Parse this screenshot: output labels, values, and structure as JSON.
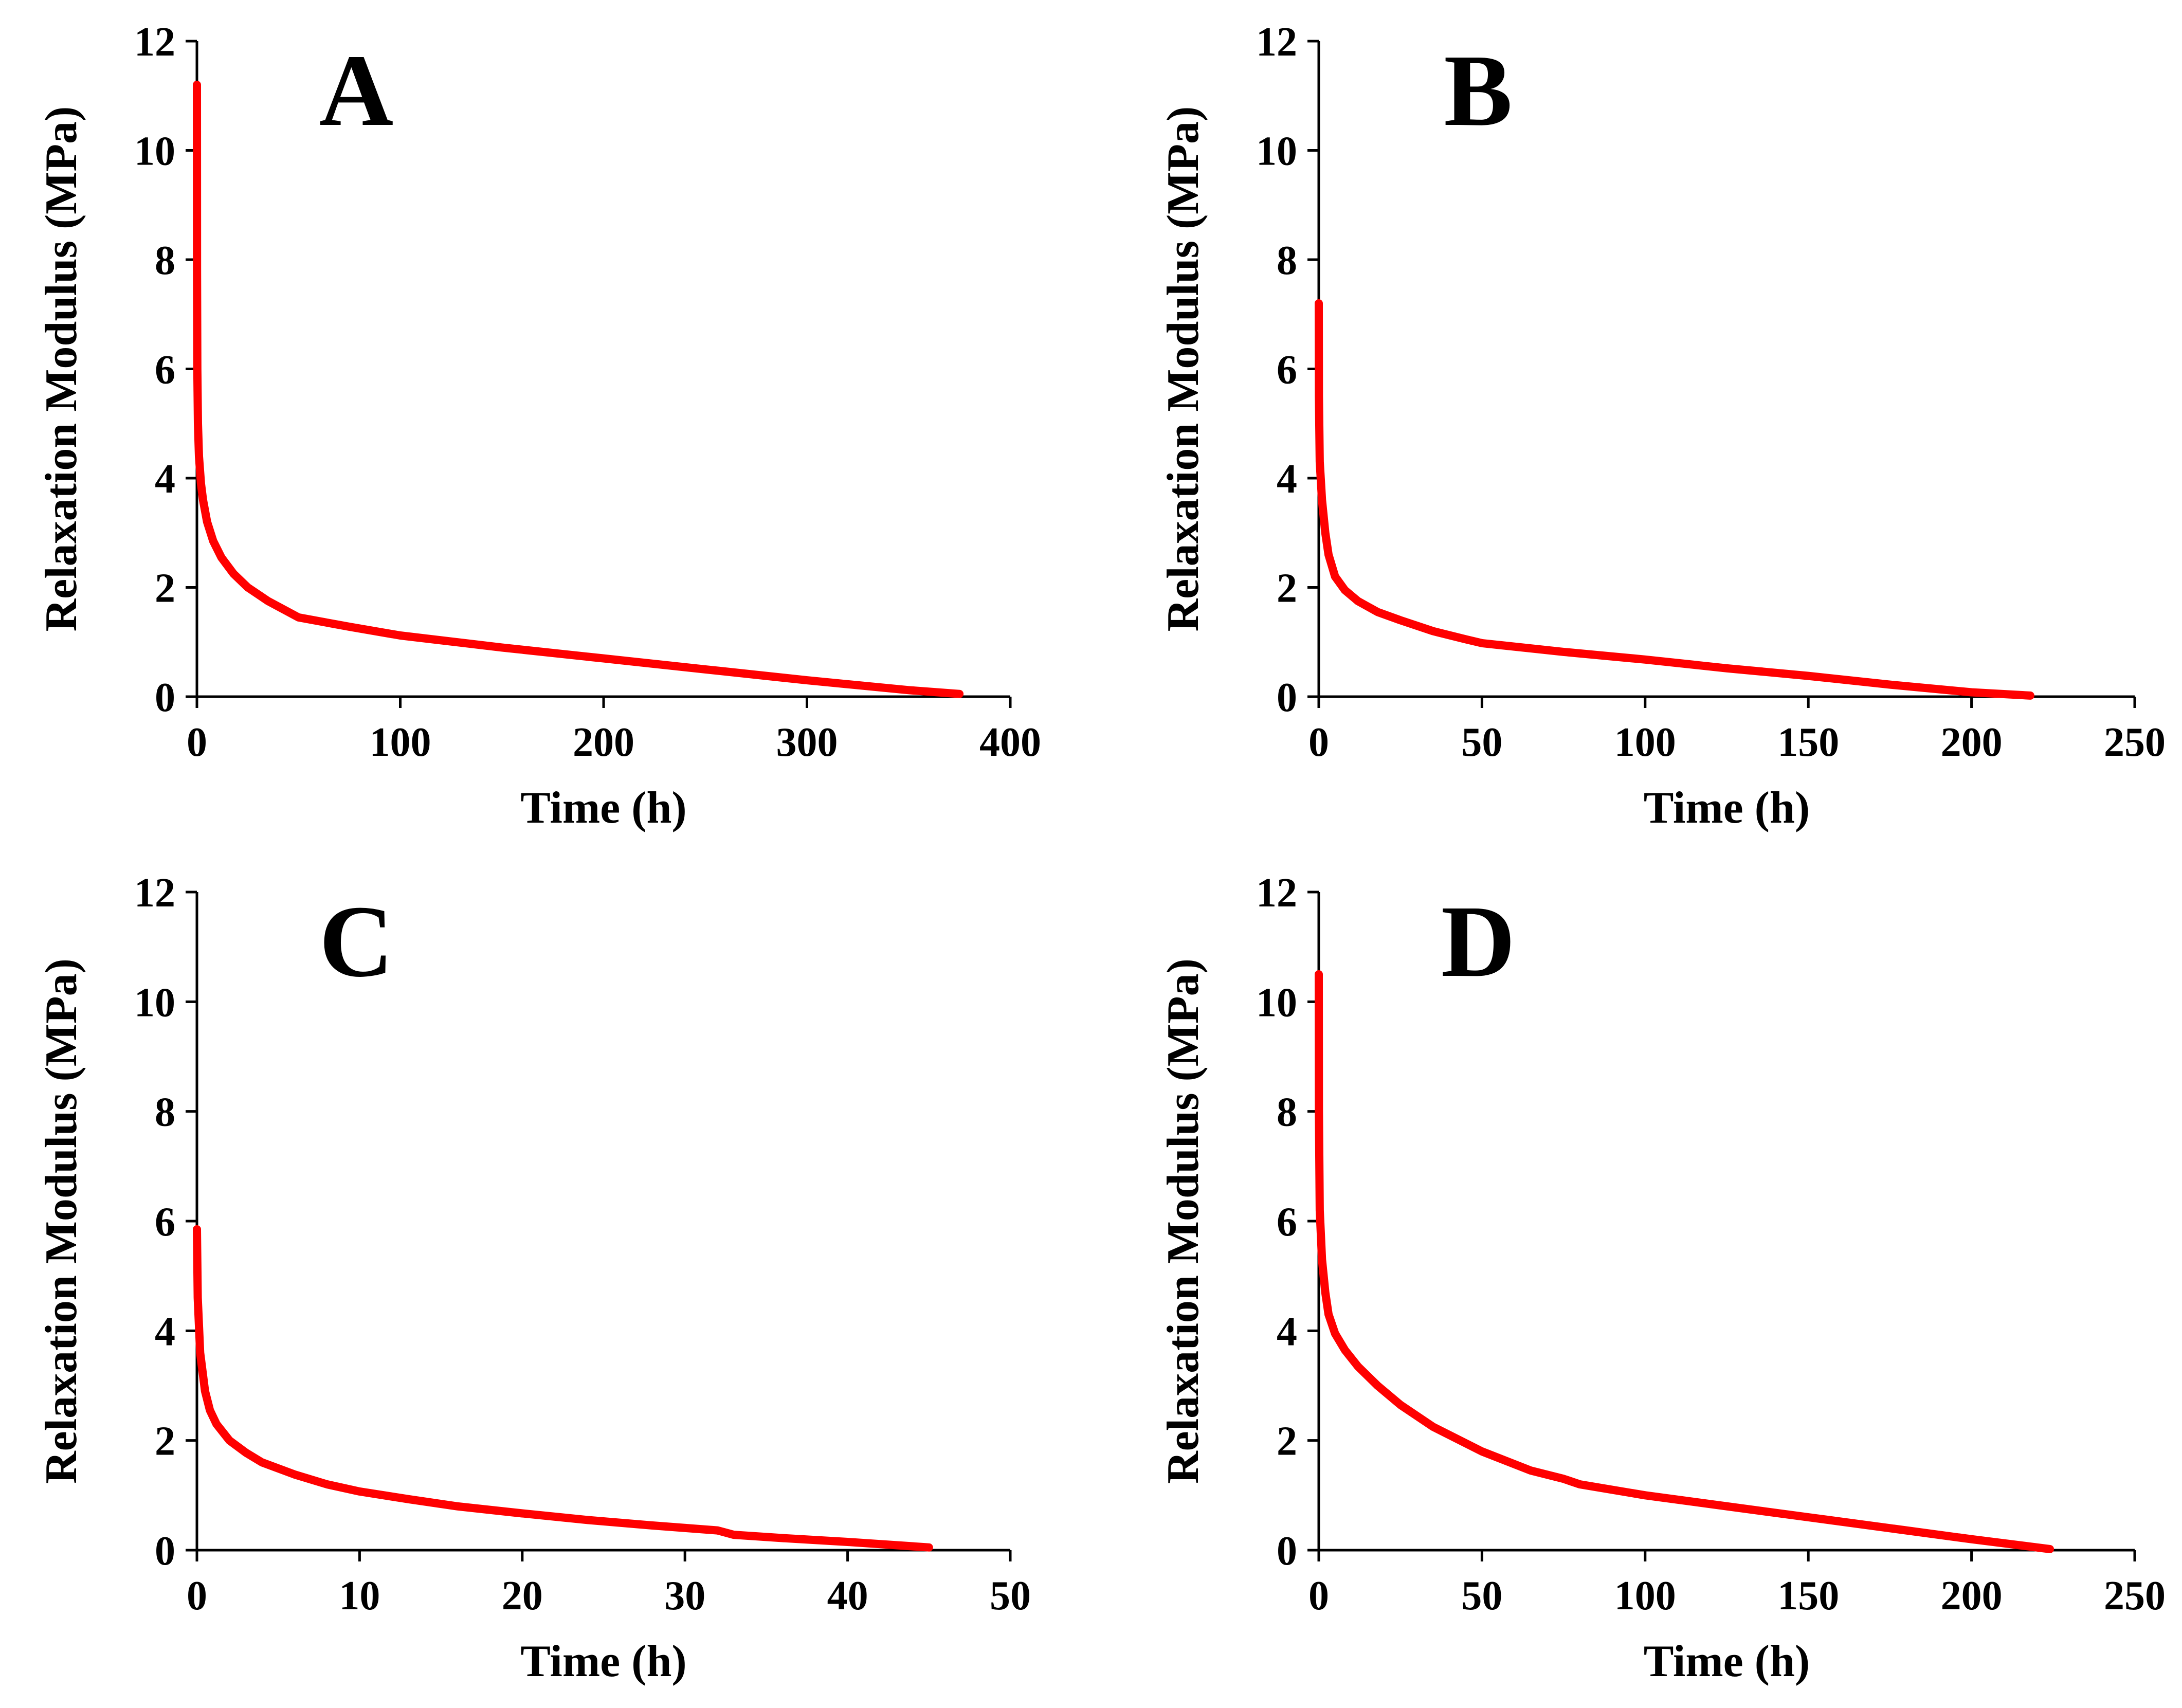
{
  "chart_data": [
    {
      "type": "line",
      "panel_label": "A",
      "xlabel": "Time (h)",
      "ylabel": "Relaxation Modulus (MPa)",
      "xlim": [
        0,
        400
      ],
      "ylim": [
        0,
        12
      ],
      "xticks": [
        0,
        100,
        200,
        300,
        400
      ],
      "yticks": [
        0,
        2,
        4,
        6,
        8,
        10,
        12
      ],
      "series": [
        {
          "name": "A",
          "color": "#ff0000",
          "x": [
            0,
            0.05,
            0.2,
            0.5,
            1,
            2,
            3,
            5,
            8,
            12,
            18,
            25,
            35,
            50,
            75,
            100,
            150,
            200,
            250,
            300,
            350,
            375
          ],
          "y": [
            11.2,
            7.8,
            6.0,
            5.0,
            4.4,
            3.9,
            3.6,
            3.2,
            2.85,
            2.55,
            2.25,
            2.0,
            1.75,
            1.45,
            1.28,
            1.12,
            0.9,
            0.7,
            0.5,
            0.3,
            0.12,
            0.05
          ]
        }
      ]
    },
    {
      "type": "line",
      "panel_label": "B",
      "xlabel": "Time (h)",
      "ylabel": "Relaxation Modulus (MPa)",
      "xlim": [
        0,
        250
      ],
      "ylim": [
        0,
        12
      ],
      "xticks": [
        0,
        50,
        100,
        150,
        200,
        250
      ],
      "yticks": [
        0,
        2,
        4,
        6,
        8,
        10,
        12
      ],
      "series": [
        {
          "name": "B",
          "color": "#ff0000",
          "x": [
            0,
            0.05,
            0.3,
            1,
            2,
            3,
            5,
            8,
            12,
            18,
            25,
            35,
            45,
            50,
            75,
            100,
            125,
            150,
            175,
            200,
            218
          ],
          "y": [
            7.2,
            5.5,
            4.3,
            3.6,
            3.0,
            2.6,
            2.2,
            1.95,
            1.75,
            1.55,
            1.4,
            1.2,
            1.05,
            0.98,
            0.82,
            0.68,
            0.52,
            0.38,
            0.22,
            0.08,
            0.02
          ]
        }
      ]
    },
    {
      "type": "line",
      "panel_label": "C",
      "xlabel": "Time (h)",
      "ylabel": "Relaxation Modulus (MPa)",
      "xlim": [
        0,
        50
      ],
      "ylim": [
        0,
        12
      ],
      "xticks": [
        0,
        10,
        20,
        30,
        40,
        50
      ],
      "yticks": [
        0,
        2,
        4,
        6,
        8,
        10,
        12
      ],
      "series": [
        {
          "name": "C",
          "color": "#ff0000",
          "x": [
            0,
            0.05,
            0.2,
            0.5,
            0.8,
            1.2,
            2,
            3,
            4,
            6,
            8,
            10,
            13,
            16,
            20,
            24,
            28,
            32,
            33,
            36,
            40,
            45
          ],
          "y": [
            5.85,
            4.6,
            3.6,
            2.9,
            2.55,
            2.3,
            2.0,
            1.78,
            1.6,
            1.38,
            1.2,
            1.07,
            0.93,
            0.8,
            0.67,
            0.55,
            0.45,
            0.36,
            0.28,
            0.22,
            0.15,
            0.05
          ]
        }
      ]
    },
    {
      "type": "line",
      "panel_label": "D",
      "xlabel": "Time (h)",
      "ylabel": "Relaxation Modulus (MPa)",
      "xlim": [
        0,
        250
      ],
      "ylim": [
        0,
        12
      ],
      "xticks": [
        0,
        50,
        100,
        150,
        200,
        250
      ],
      "yticks": [
        0,
        2,
        4,
        6,
        8,
        10,
        12
      ],
      "series": [
        {
          "name": "D",
          "color": "#ff0000",
          "x": [
            0,
            0.05,
            0.3,
            1,
            2,
            3,
            5,
            8,
            12,
            18,
            25,
            35,
            50,
            65,
            75,
            80,
            100,
            125,
            150,
            175,
            200,
            224
          ],
          "y": [
            10.5,
            8.0,
            6.2,
            5.3,
            4.7,
            4.3,
            3.95,
            3.65,
            3.35,
            3.0,
            2.65,
            2.25,
            1.8,
            1.45,
            1.3,
            1.2,
            1.0,
            0.8,
            0.6,
            0.4,
            0.2,
            0.02
          ]
        }
      ]
    }
  ]
}
